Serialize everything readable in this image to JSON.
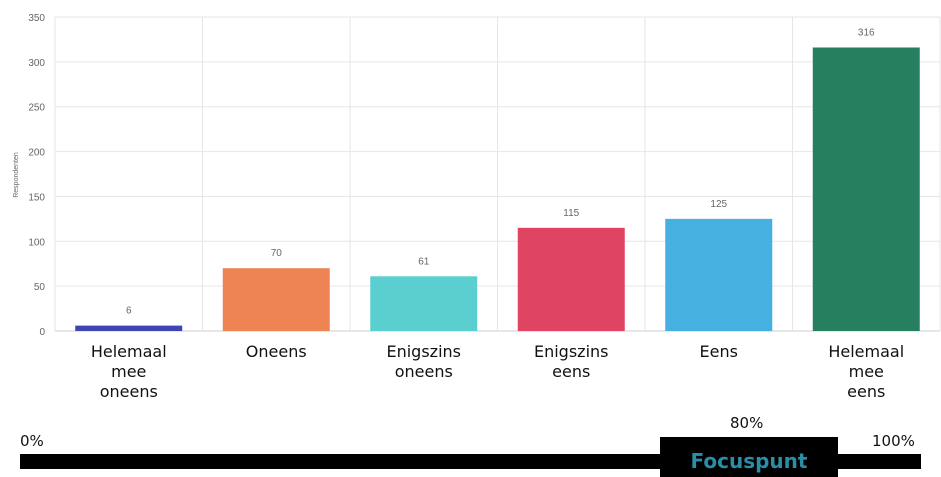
{
  "chart_data": {
    "type": "bar",
    "ylabel": "Respondenten",
    "ylim": [
      0,
      350
    ],
    "yticks": [
      0,
      50,
      100,
      150,
      200,
      250,
      300,
      350
    ],
    "grid": true,
    "categories": [
      [
        "Helemaal",
        "mee",
        "oneens"
      ],
      [
        "Oneens"
      ],
      [
        "Enigszins",
        "oneens"
      ],
      [
        "Enigszins",
        "eens"
      ],
      [
        "Eens"
      ],
      [
        "Helemaal",
        "mee",
        "eens"
      ]
    ],
    "values": [
      6,
      70,
      61,
      115,
      125,
      316
    ],
    "colors": [
      "#3d46b4",
      "#ee8354",
      "#5bcfcf",
      "#e04463",
      "#46b0e0",
      "#268060"
    ]
  },
  "scale": {
    "start_label": "0%",
    "mark_label": "80%",
    "end_label": "100%",
    "focus_label": "Focuspunt",
    "focus_color": "#2b8ea8"
  }
}
